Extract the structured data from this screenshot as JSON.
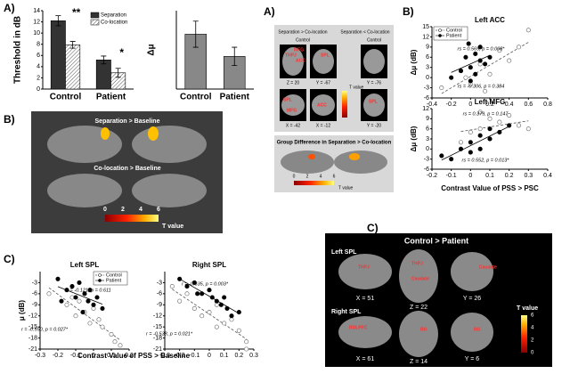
{
  "panel_labels": [
    "A)",
    "B)",
    "C)",
    "A)",
    "B)",
    "C)"
  ],
  "chart_data": [
    {
      "type": "bar",
      "ylabel": "Threshold in dB",
      "categories": [
        "Control",
        "Patient"
      ],
      "series": [
        {
          "name": "Separation",
          "color": "#333333",
          "values": [
            12.2,
            5.2
          ],
          "errors": [
            0.9,
            0.7
          ]
        },
        {
          "name": "Co-location",
          "color": "#ffffff",
          "hatch": true,
          "values": [
            7.9,
            2.9
          ],
          "errors": [
            0.6,
            0.8
          ]
        }
      ],
      "annotations": [
        "**",
        "*"
      ],
      "ylim": [
        0,
        14
      ],
      "yticks": [
        0,
        2,
        4,
        6,
        8,
        10,
        12,
        14
      ],
      "legend": "upper right"
    },
    {
      "type": "bar",
      "ylabel": "Δμ",
      "categories": [
        "Control",
        "Patient"
      ],
      "series": [
        {
          "name": null,
          "color": "#888888",
          "values": [
            4.2,
            2.5
          ],
          "errors": [
            1.0,
            0.7
          ]
        }
      ],
      "ylim": [
        0,
        6
      ]
    },
    {
      "type": "scatter",
      "title": "Left SPL",
      "ylabel": "μ (dB)",
      "xlabel": "Contrast Value of PSS > Baseline",
      "xlim": [
        -0.3,
        0.2
      ],
      "xticks": [
        -0.3,
        -0.2,
        -0.1,
        0,
        0.1,
        0.2
      ],
      "ylim": [
        -21,
        0
      ],
      "yticks": [
        -3,
        -6,
        -9,
        -12,
        -15,
        -18,
        -21
      ],
      "series": [
        {
          "name": "Control",
          "marker": "open",
          "x": [
            -0.25,
            -0.15,
            -0.1,
            -0.08,
            -0.05,
            -0.02,
            0,
            0.03,
            0.05,
            0.1,
            0.12,
            0.15,
            -0.12
          ],
          "values": [
            -6,
            -9,
            -12,
            -8,
            -11,
            -14,
            -10,
            -13,
            -15,
            -17,
            -19,
            -20,
            -7
          ]
        },
        {
          "name": "Patient",
          "marker": "filled",
          "x": [
            -0.2,
            -0.15,
            -0.12,
            -0.1,
            -0.08,
            -0.05,
            -0.03,
            -0.02,
            0,
            0.02,
            0.05,
            -0.18,
            -0.06
          ],
          "values": [
            -2,
            -5,
            -4,
            -7,
            -3,
            -6,
            -8,
            -5,
            -9,
            -7,
            -10,
            -8,
            -11
          ]
        }
      ],
      "annotations": [
        "r = -0.121, p = 0.611",
        "r = -0.550, p = 0.027*"
      ],
      "legend": "upper right"
    },
    {
      "type": "scatter",
      "title": "Right SPL",
      "xlim": [
        -0.3,
        0.3
      ],
      "xticks": [
        -0.3,
        -0.2,
        -0.1,
        0,
        0.1,
        0.2,
        0.3
      ],
      "ylim": [
        -21,
        0
      ],
      "yticks": [
        -3,
        -6,
        -9,
        -12,
        -15,
        -18,
        -21
      ],
      "series": [
        {
          "name": "Control",
          "marker": "open",
          "x": [
            -0.25,
            -0.2,
            -0.15,
            -0.1,
            -0.05,
            0,
            0.05,
            0.1,
            0.15,
            0.2,
            0.25,
            0.25,
            0.05
          ],
          "values": [
            -4,
            -8,
            -6,
            -10,
            -12,
            -11,
            -9,
            -14,
            -13,
            -16,
            -19,
            -21,
            -15
          ]
        },
        {
          "name": "Patient",
          "marker": "filled",
          "x": [
            -0.2,
            -0.15,
            -0.1,
            -0.05,
            0,
            0.02,
            0.05,
            0.08,
            0.1,
            0.12,
            0.15,
            0.2,
            -0.08
          ],
          "values": [
            -2,
            -4,
            -3,
            -6,
            -5,
            -7,
            -8,
            -9,
            -7,
            -10,
            -12,
            -11,
            -6
          ]
        }
      ],
      "annotations": [
        "r = -0.635, p = 0.003*",
        "r = -0.538, p = 0.021*"
      ]
    },
    {
      "type": "scatter",
      "title": "Left ACC",
      "ylabel": "Δμ (dB)",
      "xlim": [
        -0.4,
        0.8
      ],
      "xticks": [
        -0.4,
        -0.2,
        0,
        0.2,
        0.4,
        0.6,
        0.8
      ],
      "ylim": [
        -6,
        15
      ],
      "yticks": [
        -6,
        -3,
        0,
        3,
        6,
        9,
        12,
        15
      ],
      "series": [
        {
          "name": "Control",
          "marker": "open",
          "x": [
            -0.3,
            -0.1,
            0,
            0.1,
            0.2,
            0.3,
            0.4,
            0.5,
            0.6,
            0.15,
            -0.05
          ],
          "values": [
            -3,
            2,
            -2,
            4,
            1,
            8,
            5,
            9,
            14,
            -4,
            0
          ]
        },
        {
          "name": "Patient",
          "marker": "filled",
          "x": [
            -0.2,
            -0.1,
            -0.05,
            0,
            0,
            0.05,
            0.1,
            0.1,
            0.15,
            0.2,
            0.05,
            -0.02
          ],
          "values": [
            0,
            2,
            6,
            3,
            -1,
            7,
            5,
            9,
            4,
            6,
            1,
            10
          ]
        }
      ],
      "annotations": [
        "rs = 0.569, p = 0.008*",
        "rs = -0.306, p = 0.384"
      ],
      "legend": "upper left"
    },
    {
      "type": "scatter",
      "title": "Left MFG",
      "ylabel": "Δμ (dB)",
      "xlabel": "Contrast Value of  PSS > PSC",
      "xlim": [
        -0.2,
        0.4
      ],
      "xticks": [
        -0.2,
        -0.1,
        0,
        0.1,
        0.2,
        0.3,
        0.4
      ],
      "ylim": [
        -6,
        12
      ],
      "yticks": [
        -6,
        -3,
        0,
        3,
        6,
        9,
        12
      ],
      "series": [
        {
          "name": "Control",
          "marker": "open",
          "x": [
            -0.05,
            0,
            0.05,
            0.1,
            0.15,
            0.2,
            0.25,
            0.3,
            0.1,
            0.05
          ],
          "values": [
            2,
            5,
            6,
            3,
            8,
            10,
            7,
            6,
            9,
            11
          ]
        },
        {
          "name": "Patient",
          "marker": "filled",
          "x": [
            -0.1,
            -0.05,
            0,
            0,
            0.05,
            0.1,
            0.1,
            0.15,
            0.2,
            -0.15,
            0.05
          ],
          "values": [
            -3,
            0,
            2,
            -1,
            4,
            3,
            6,
            5,
            7,
            -2,
            0
          ]
        }
      ],
      "annotations": [
        "rs = 0.379, p = 0.147",
        "rs = 0.552, p = 0.013*"
      ]
    }
  ],
  "brain_b": {
    "titles": [
      "Separation > Baseline",
      "Co-location > Baseline"
    ],
    "colorbar_ticks": [
      0,
      2,
      4,
      6
    ],
    "colorbar_label": "T value"
  },
  "brain_a": {
    "titles": [
      "Separation > Co-location",
      "Separation < Co-location"
    ],
    "groups": [
      "Control",
      "Control"
    ],
    "regions": [
      "THPJ",
      "MFG",
      "ACC",
      "SPL",
      "SPL",
      "MFG",
      "ACC",
      "SPL"
    ],
    "coords": [
      "Z = 20",
      "Y = -67",
      "Y = -76",
      "X = -42",
      "X = -12",
      "Y = -20"
    ],
    "colorbar_label": "T value",
    "group_title": "Group Difference in Separation > Co-location",
    "colorbar_ticks": [
      0,
      2,
      4,
      6
    ],
    "group_colorbar_label": "T value"
  },
  "brain_c": {
    "title": "Control > Patient",
    "rows": [
      "Left SPL",
      "Right SPL"
    ],
    "regions": [
      "THPJ",
      "THPJ",
      "Caudate",
      "Caudate",
      "RDLPFC",
      "RG",
      "RG"
    ],
    "coords": [
      "X = 51",
      "Z = 22",
      "Y = 26",
      "X = 61",
      "Z = 14",
      "Y = 6"
    ],
    "colorbar_label": "T value",
    "colorbar_ticks": [
      6,
      4,
      2,
      0
    ]
  }
}
